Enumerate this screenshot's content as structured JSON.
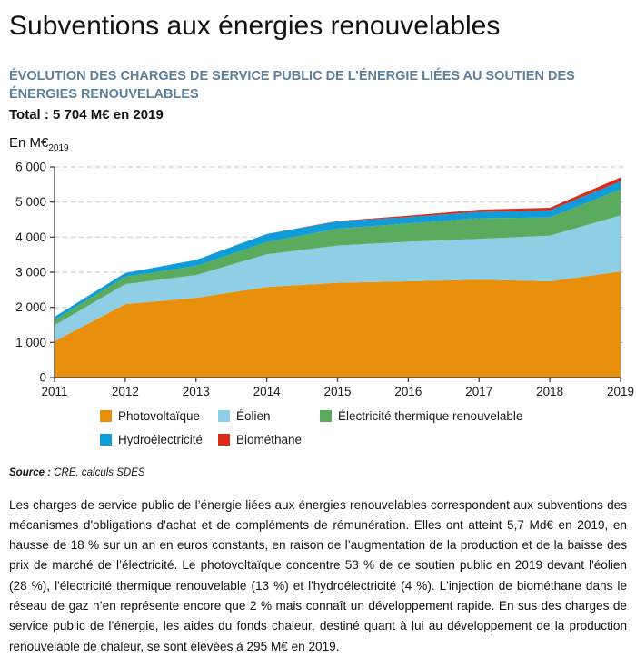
{
  "page": {
    "title": "Subventions aux énergies renouvelables",
    "subtitle": "ÉVOLUTION DES CHARGES DE SERVICE PUBLIC DE L’ÉNERGIE LIÉES AU SOUTIEN DES ÉNERGIES RENOUVELABLES",
    "total_line": "Total : 5 704 M€ en 2019",
    "unit_prefix": "En M€",
    "unit_subscript": "2019",
    "source_label": "Source :",
    "source_text": "CRE, calculs SDES",
    "body_paragraph": "Les charges de service public de l’énergie liées aux énergies renouvelables correspondent aux subventions des mécanismes d'obligations d'achat et de compléments de rémunération. Elles ont atteint 5,7 Md€ en 2019, en hausse de 18 % sur un an en euros constants, en raison de l’augmentation de la production et de la baisse des prix de marché de l’électricité. Le photovoltaïque concentre 53 % de ce soutien public en 2019 devant l'éolien (28 %), l'électricité thermique renouvelable (13 %) et l'hydroélectricité (4 %). L'injection de biométhane dans le réseau de gaz n’en représente encore que 2 % mais connaît un développement rapide. En sus des charges de service public de l’énergie, les aides du fonds chaleur, destiné quant à lui au développement de la production renouvelable de chaleur, se sont élevées à 295 M€ en 2019."
  },
  "chart_data": {
    "type": "area",
    "stacked": true,
    "title": "Évolution des charges de service public de l’énergie liées au soutien des énergies renouvelables",
    "ylabel": "En M€ (euros constants 2019)",
    "xlabel": "",
    "x": [
      2011,
      2012,
      2013,
      2014,
      2015,
      2016,
      2017,
      2018,
      2019
    ],
    "xtick_labels": [
      "2011",
      "2012",
      "2013",
      "2014",
      "2015",
      "2016",
      "2017",
      "2018",
      "2019"
    ],
    "ylim": [
      0,
      6000
    ],
    "ytick_values": [
      0,
      1000,
      2000,
      3000,
      4000,
      5000,
      6000
    ],
    "ytick_labels": [
      "0",
      "1 000",
      "2 000",
      "3 000",
      "4 000",
      "5 000",
      "6 000"
    ],
    "grid": "horizontal-dashed",
    "legend_position": "below",
    "series": [
      {
        "name": "Photovoltaïque",
        "slug": "photovoltaique",
        "color": "#E8900C",
        "values": [
          1030,
          2090,
          2270,
          2580,
          2700,
          2740,
          2790,
          2740,
          3023
        ]
      },
      {
        "name": "Éolien",
        "slug": "eolien",
        "color": "#8FCFE6",
        "values": [
          460,
          570,
          650,
          930,
          1060,
          1130,
          1160,
          1300,
          1597
        ]
      },
      {
        "name": "Électricité thermique renouvelable",
        "slug": "electricite-thermique-renouvelable",
        "color": "#5BAB5E",
        "values": [
          150,
          210,
          260,
          350,
          480,
          520,
          590,
          520,
          741
        ]
      },
      {
        "name": "Hydroélectricité",
        "slug": "hydroelectricite",
        "color": "#109CD8",
        "values": [
          90,
          110,
          170,
          230,
          210,
          180,
          180,
          205,
          228
        ]
      },
      {
        "name": "Biométhane",
        "slug": "biomethane",
        "color": "#DB2B19",
        "values": [
          0,
          0,
          0,
          0,
          10,
          40,
          60,
          70,
          115
        ]
      }
    ],
    "totals": [
      1730,
      2980,
      3350,
      4090,
      4460,
      4610,
      4780,
      4835,
      5704
    ],
    "total_2019": 5704,
    "shares_2019_percent": {
      "photovoltaique": 53,
      "eolien": 28,
      "electricite_thermique_renouvelable": 13,
      "hydroelectricite": 4,
      "biomethane": 2
    }
  },
  "colors": {
    "subtitle_blue": "#5B7F9D",
    "axis": "#4D4D4D",
    "grid": "#CDCDCD",
    "text": "#111111"
  }
}
